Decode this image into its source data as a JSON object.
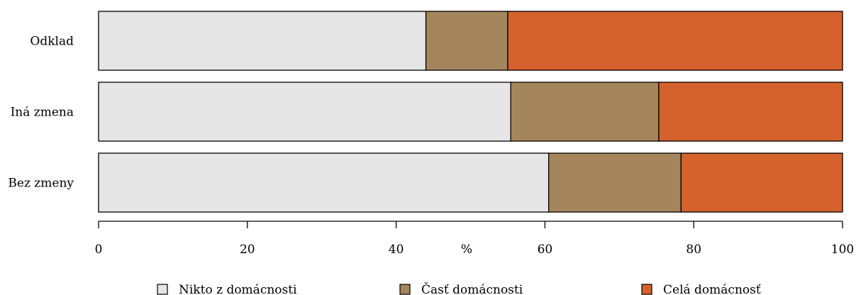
{
  "chart_data": {
    "type": "bar",
    "orientation": "horizontal",
    "stacked": true,
    "categories": [
      "Odklad",
      "Iná zmena",
      "Bez zmeny"
    ],
    "series": [
      {
        "name": "Nikto z domácnosti",
        "color": "#e6e6e6",
        "values": [
          44,
          55.4,
          60.5
        ]
      },
      {
        "name": "Časť domácnosti",
        "color": "#a5865c",
        "values": [
          11,
          19.9,
          17.8
        ]
      },
      {
        "name": "Celá domácnosť",
        "color": "#d5622c",
        "values": [
          45,
          24.7,
          21.7
        ]
      }
    ],
    "xlabel": "%",
    "xlim": [
      0,
      100
    ],
    "xticks": [
      0,
      20,
      40,
      60,
      80,
      100
    ],
    "grid": false,
    "legend_position": "bottom"
  }
}
